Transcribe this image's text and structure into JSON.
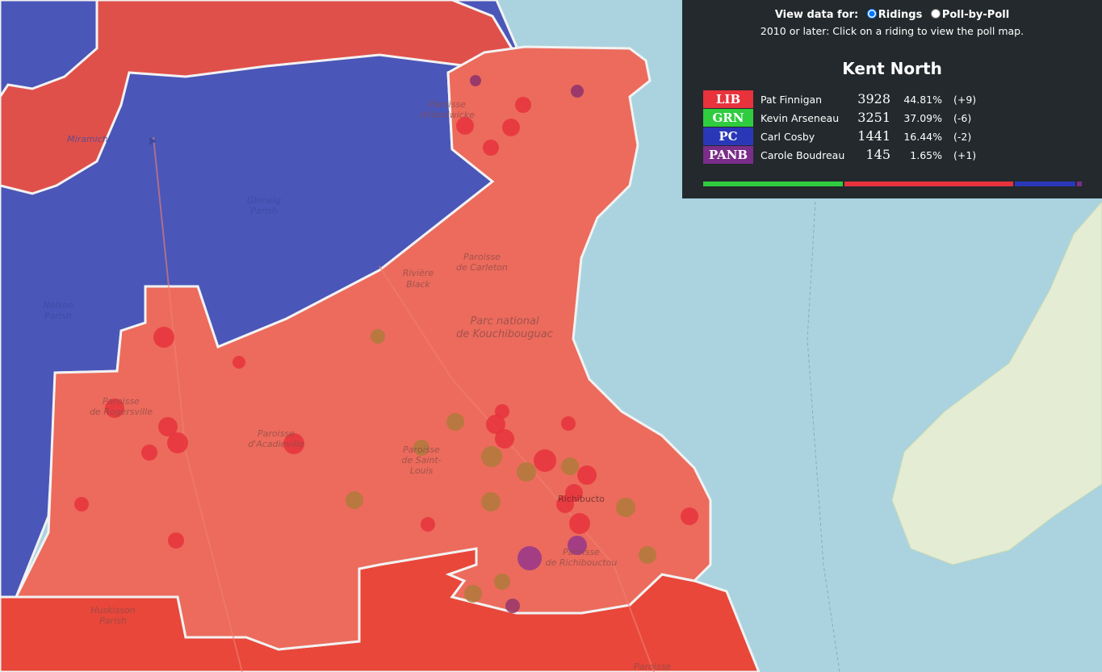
{
  "controls": {
    "label": "View data for:",
    "options": [
      "Ridings",
      "Poll-by-Poll"
    ],
    "selected": 0,
    "hint": "2010 or later: Click on a riding to view the poll map."
  },
  "riding": {
    "name": "Kent North",
    "results": [
      {
        "party": "LIB",
        "color": "#e8323c",
        "candidate": "Pat Finnigan",
        "votes": 3928,
        "percent": 44.81,
        "percent_label": "44.81%",
        "change": "(+9)"
      },
      {
        "party": "GRN",
        "color": "#2fcc3f",
        "candidate": "Kevin Arseneau",
        "votes": 3251,
        "percent": 37.09,
        "percent_label": "37.09%",
        "change": "(-6)"
      },
      {
        "party": "PC",
        "color": "#2a38b8",
        "candidate": "Carl Cosby",
        "votes": 1441,
        "percent": 16.44,
        "percent_label": "16.44%",
        "change": "(-2)"
      },
      {
        "party": "PANB",
        "color": "#7b2d8a",
        "candidate": "Carole Boudreau",
        "votes": 145,
        "percent": 1.65,
        "percent_label": "1.65%",
        "change": "(+1)"
      }
    ],
    "bar_order": [
      "GRN",
      "LIB",
      "PC",
      "PANB"
    ]
  },
  "map_labels": {
    "miramichi": [
      "Miramichi"
    ],
    "glenelg": [
      "Glenelg",
      "Parish"
    ],
    "hardwicke": [
      "Paroisse",
      "d'Hardwicke"
    ],
    "nelson": [
      "Nelson",
      "Parish"
    ],
    "black": [
      "Rivière",
      "Black"
    ],
    "carleton": [
      "Paroisse",
      "de Carleton"
    ],
    "park": [
      "Parc national",
      "de Kouchibouguac"
    ],
    "rogersville": [
      "Paroisse",
      "de Rogersville"
    ],
    "acadieville": [
      "Paroisse",
      "d'Acadieville"
    ],
    "saintlouis": [
      "Paroisse",
      "de Saint-",
      "Louis"
    ],
    "richibucto": [
      "Richibucto"
    ],
    "richibouctou": [
      "Paroisse",
      "de Richibouctou"
    ],
    "huskisson": [
      "Huskisson",
      "Parish"
    ],
    "south": [
      "Paroisse"
    ]
  }
}
